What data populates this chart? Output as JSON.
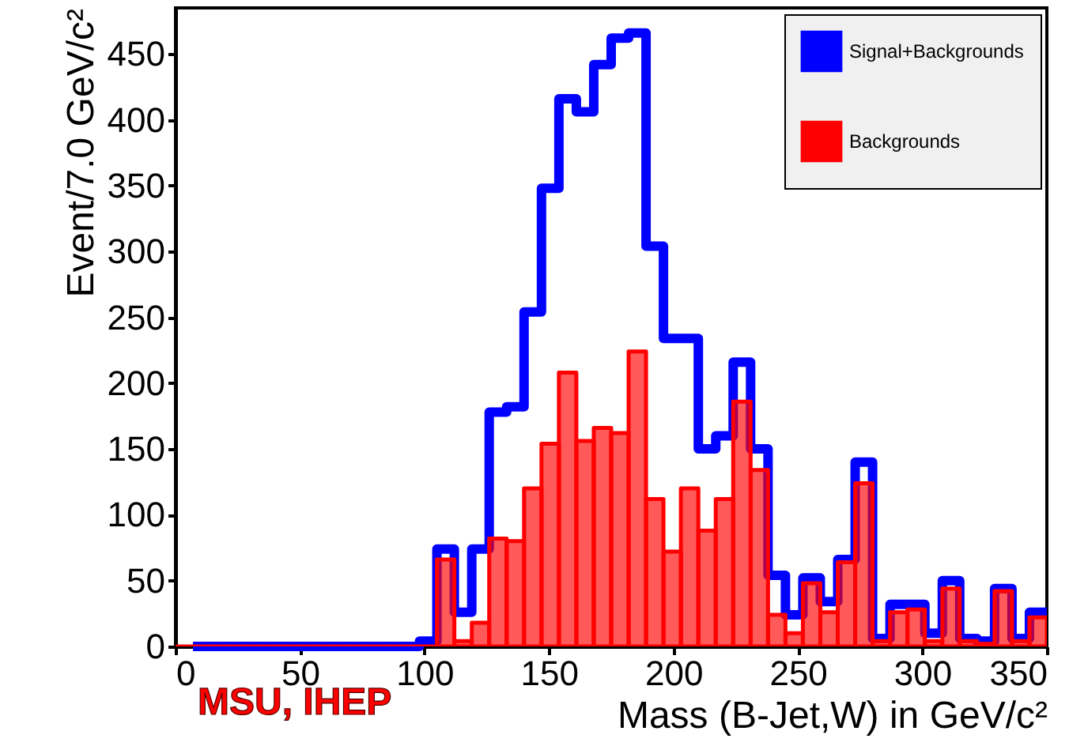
{
  "chart_data": {
    "type": "histogram",
    "xlabel": "Mass (B-Jet,W) in GeV/c²",
    "ylabel": "Event/7.0 GeV/c²",
    "bins": [
      0,
      7,
      14,
      21,
      28,
      35,
      42,
      49,
      56,
      63,
      70,
      77,
      84,
      91,
      98,
      105,
      112,
      119,
      126,
      133,
      140,
      147,
      154,
      161,
      168,
      175,
      182,
      189,
      196,
      203,
      210,
      217,
      224,
      231,
      238,
      245,
      252,
      259,
      266,
      273,
      280,
      287,
      294,
      301,
      308,
      315,
      322,
      329,
      336,
      343,
      350
    ],
    "series": [
      {
        "name": "Signal+Backgrounds",
        "color": "#0000ff",
        "type": "step",
        "x": [
          7,
          14,
          21,
          28,
          35,
          42,
          49,
          56,
          63,
          70,
          77,
          84,
          91,
          98,
          105,
          112,
          119,
          126,
          133,
          140,
          147,
          154,
          161,
          168,
          175,
          182,
          189,
          196,
          203,
          210,
          217,
          224,
          231,
          238,
          245,
          252,
          259,
          266,
          273,
          280,
          287,
          294,
          301,
          308,
          315,
          322,
          329,
          336,
          343,
          350
        ],
        "values": [
          0,
          0,
          0,
          0,
          0,
          0,
          0,
          0,
          0,
          0,
          0,
          0,
          0,
          0,
          4,
          74,
          26,
          74,
          178,
          182,
          254,
          348,
          416,
          406,
          442,
          462,
          466,
          304,
          234,
          234,
          150,
          160,
          216,
          150,
          54,
          24,
          52,
          34,
          66,
          140,
          6,
          32,
          32,
          10,
          50,
          6,
          4,
          44,
          6,
          26
        ]
      },
      {
        "name": "Backgrounds",
        "color": "#ff0000",
        "values": [
          0,
          0,
          0,
          0,
          0,
          0,
          0,
          0,
          0,
          0,
          0,
          0,
          0,
          0,
          0,
          66,
          4,
          18,
          82,
          80,
          120,
          154,
          208,
          156,
          166,
          162,
          224,
          112,
          72,
          120,
          88,
          112,
          186,
          134,
          24,
          10,
          48,
          26,
          64,
          124,
          4,
          26,
          28,
          4,
          44,
          4,
          2,
          42,
          4,
          22
        ]
      }
    ],
    "xlim": [
      0,
      350
    ],
    "xticks": [
      0,
      50,
      100,
      150,
      200,
      250,
      300,
      350
    ],
    "ylim": [
      0,
      485
    ],
    "yticks": [
      0,
      50,
      100,
      150,
      200,
      250,
      300,
      350,
      400,
      450
    ],
    "legend": "top right",
    "annotations": [
      "MSU, IHEP"
    ]
  }
}
